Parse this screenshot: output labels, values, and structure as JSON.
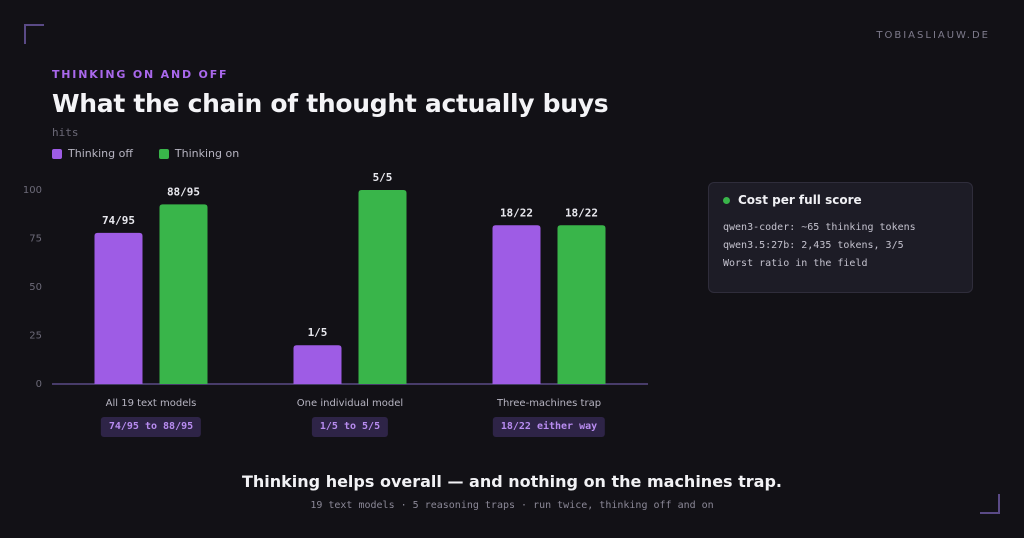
{
  "header": {
    "site": "TOBIASLIAUW.DE",
    "eyebrow": "THINKING ON AND OFF",
    "title": "What the chain of thought actually buys",
    "unit": "hits"
  },
  "colors": {
    "off": "#9e5ce5",
    "on": "#39b54a",
    "pill_bg": "#2e2447",
    "pill_text": "#b88cf0"
  },
  "chart_data": {
    "type": "bar",
    "categories": [
      "All 19 text models",
      "One individual model",
      "Three-machines trap"
    ],
    "series": [
      {
        "name": "Thinking off",
        "values": [
          77.9,
          20,
          81.8
        ],
        "labels": [
          "74/95",
          "1/5",
          "18/22"
        ]
      },
      {
        "name": "Thinking on",
        "values": [
          92.6,
          100,
          81.8
        ],
        "labels": [
          "88/95",
          "5/5",
          "18/22"
        ]
      }
    ],
    "ylabel": "hits",
    "ylim": [
      0,
      100
    ],
    "yticks": [
      0,
      25,
      50,
      75,
      100
    ],
    "grid": false,
    "legend": "top-left",
    "summaries": [
      "74/95 to 88/95",
      "1/5 to 5/5",
      "18/22 either way"
    ]
  },
  "card": {
    "title": "Cost per full score",
    "lines": [
      "qwen3-coder: ~65 thinking tokens",
      "qwen3.5:27b: 2,435 tokens, 3/5",
      "Worst ratio in the field"
    ]
  },
  "footer": {
    "headline": "Thinking helps overall — and nothing on the machines trap.",
    "sub": "19 text models · 5 reasoning traps · run twice, thinking off and on"
  }
}
